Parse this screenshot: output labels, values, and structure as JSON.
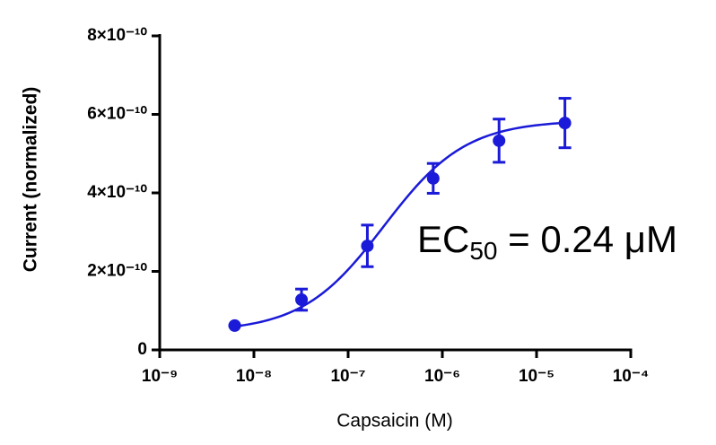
{
  "chart_data": {
    "type": "scatter",
    "x_label": "Capsaicin (M)",
    "y_label": "Current (normalized)",
    "xlog": true,
    "xlim": [
      1e-09,
      0.0001
    ],
    "xticks": [
      {
        "value": 1e-09,
        "label": "10⁻⁹"
      },
      {
        "value": 1e-08,
        "label": "10⁻⁸"
      },
      {
        "value": 1e-07,
        "label": "10⁻⁷"
      },
      {
        "value": 1e-06,
        "label": "10⁻⁶"
      },
      {
        "value": 1e-05,
        "label": "10⁻⁵"
      },
      {
        "value": 0.0001,
        "label": "10⁻⁴"
      }
    ],
    "ylim": [
      0,
      8e-10
    ],
    "yticks": [
      0,
      {
        "value": 2e-10,
        "label": "2×10⁻¹⁰"
      },
      {
        "value": 4e-10,
        "label": "4×10⁻¹⁰"
      },
      {
        "value": 6e-10,
        "label": "6×10⁻¹⁰"
      },
      {
        "value": 8e-10,
        "label": "8×10⁻¹⁰"
      }
    ],
    "series": [
      {
        "color": "#1a1ad8",
        "x": [
          6.25e-09,
          3.2e-08,
          1.6e-07,
          8e-07,
          4e-06,
          2e-05
        ],
        "values": [
          6.2e-11,
          1.28e-10,
          2.65e-10,
          4.37e-10,
          5.33e-10,
          5.78e-10
        ],
        "errors": [
          0,
          2.7e-11,
          5.3e-11,
          3.8e-11,
          5.5e-11,
          6.3e-11
        ]
      }
    ],
    "fit": {
      "bottom": 4.6e-11,
      "top": 5.85e-10,
      "ec50": 2.4e-07,
      "hill": 1
    },
    "annotation": {
      "main": "EC",
      "sub": "50",
      "rest": " = 0.24 μM"
    }
  }
}
